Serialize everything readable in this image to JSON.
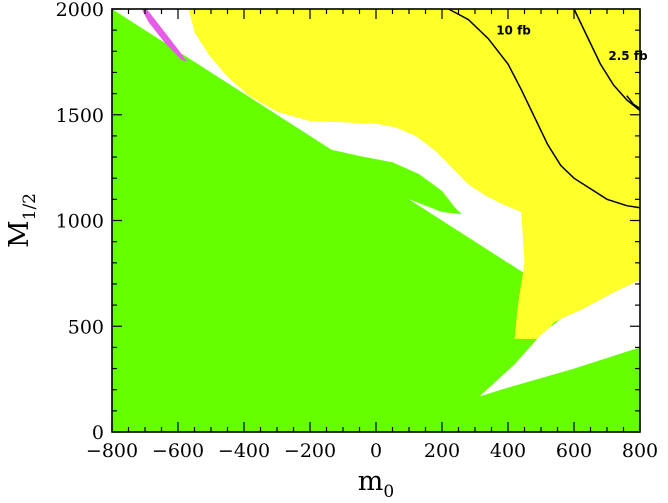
{
  "chart_data": {
    "type": "contour",
    "x_axis": {
      "label_main": "m",
      "label_sub": "0",
      "range": [
        -800,
        800
      ],
      "ticks": [
        -800,
        -600,
        -400,
        -200,
        0,
        200,
        400,
        600,
        800
      ],
      "tick_labels": [
        "−800",
        "−600",
        "−400",
        "−200",
        "0",
        "200",
        "400",
        "600",
        "800"
      ]
    },
    "y_axis": {
      "label_main": "M",
      "label_sub": "1/2",
      "range": [
        0,
        2000
      ],
      "ticks": [
        0,
        500,
        1000,
        1500,
        2000
      ],
      "tick_labels": [
        "0",
        "500",
        "1000",
        "1500",
        "2000"
      ]
    },
    "colors": {
      "green": "#66ff00",
      "yellow": "#ffff2a",
      "white": "#ffffff",
      "magenta": "#e65ce6",
      "contour": "#000000"
    },
    "regions": [
      {
        "color": "green",
        "polygon": [
          [
            -800,
            0
          ],
          [
            800,
            0
          ],
          [
            800,
            400
          ],
          [
            -800,
            2000
          ]
        ]
      },
      {
        "color": "yellow",
        "polygon": [
          [
            -662,
            2000
          ],
          [
            -568,
            2000
          ],
          [
            -550,
            1890
          ],
          [
            -505,
            1780
          ],
          [
            -450,
            1680
          ],
          [
            -385,
            1590
          ],
          [
            -300,
            1515
          ],
          [
            -200,
            1470
          ],
          [
            -100,
            1465
          ],
          [
            -40,
            1460
          ],
          [
            0,
            1458
          ],
          [
            60,
            1440
          ],
          [
            120,
            1400
          ],
          [
            180,
            1330
          ],
          [
            230,
            1250
          ],
          [
            280,
            1170
          ],
          [
            330,
            1120
          ],
          [
            380,
            1080
          ],
          [
            410,
            1060
          ],
          [
            440,
            1040
          ],
          [
            450,
            800
          ],
          [
            430,
            600
          ],
          [
            420,
            440
          ],
          [
            500,
            440
          ],
          [
            540,
            520
          ],
          [
            600,
            560
          ],
          [
            660,
            610
          ],
          [
            720,
            660
          ],
          [
            800,
            720
          ],
          [
            800,
            2000
          ]
        ]
      },
      {
        "color": "green",
        "polygon": [
          [
            -530,
            1670
          ],
          [
            -480,
            1600
          ],
          [
            -420,
            1530
          ],
          [
            -340,
            1460
          ],
          [
            -240,
            1390
          ],
          [
            -150,
            1340
          ],
          [
            -50,
            1305
          ],
          [
            50,
            1275
          ],
          [
            130,
            1220
          ],
          [
            200,
            1140
          ],
          [
            240,
            1060
          ],
          [
            260,
            1030
          ],
          [
            200,
            1040
          ],
          [
            100,
            1100
          ],
          [
            0,
            1130
          ],
          [
            -100,
            1150
          ],
          [
            -200,
            1195
          ],
          [
            -300,
            1265
          ],
          [
            -400,
            1360
          ],
          [
            -490,
            1470
          ],
          [
            -545,
            1590
          ]
        ]
      },
      {
        "color": "white",
        "polygon": [
          [
            313,
            168
          ],
          [
            400,
            210
          ],
          [
            500,
            255
          ],
          [
            600,
            300
          ],
          [
            700,
            350
          ],
          [
            800,
            400
          ],
          [
            800,
            715
          ],
          [
            720,
            650
          ],
          [
            640,
            590
          ],
          [
            560,
            535
          ],
          [
            500,
            460
          ],
          [
            420,
            320
          ]
        ]
      },
      {
        "color": "magenta",
        "polygon": [
          [
            -710,
            2000
          ],
          [
            -695,
            2000
          ],
          [
            -650,
            1910
          ],
          [
            -600,
            1810
          ],
          [
            -572,
            1750
          ],
          [
            -590,
            1760
          ],
          [
            -640,
            1840
          ],
          [
            -690,
            1940
          ]
        ]
      }
    ],
    "contours": [
      {
        "label": "10 fb",
        "points": [
          [
            220,
            2000
          ],
          [
            280,
            1950
          ],
          [
            340,
            1860
          ],
          [
            400,
            1740
          ],
          [
            440,
            1620
          ],
          [
            480,
            1490
          ],
          [
            520,
            1360
          ],
          [
            560,
            1260
          ],
          [
            600,
            1200
          ],
          [
            650,
            1150
          ],
          [
            700,
            1100
          ],
          [
            760,
            1070
          ],
          [
            800,
            1060
          ]
        ]
      },
      {
        "label": "2.5 fb",
        "points": [
          [
            600,
            2000
          ],
          [
            640,
            1870
          ],
          [
            680,
            1740
          ],
          [
            720,
            1640
          ],
          [
            760,
            1570
          ],
          [
            800,
            1520
          ]
        ]
      },
      {
        "label": "",
        "points": [
          [
            760,
            1590
          ],
          [
            780,
            1550
          ],
          [
            800,
            1530
          ]
        ]
      }
    ]
  }
}
